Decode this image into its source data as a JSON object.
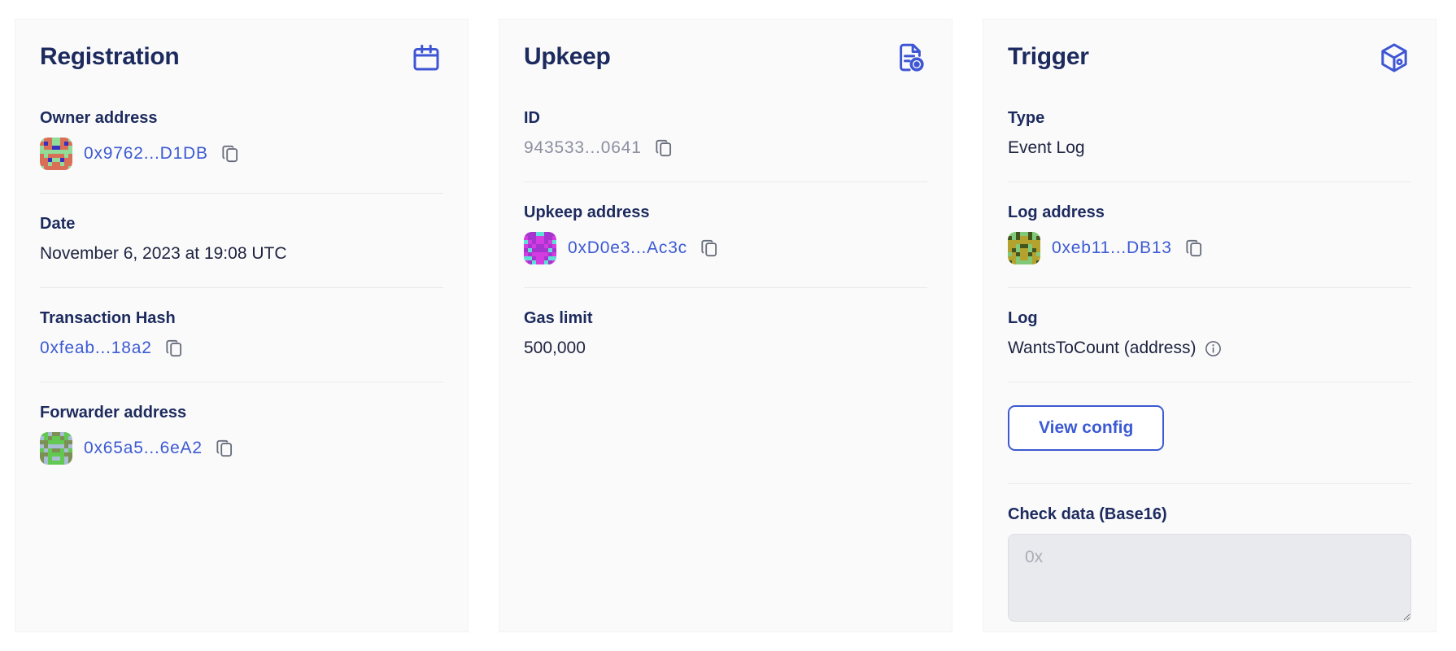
{
  "colors": {
    "accent_blue": "#3c5ad3",
    "heading_navy": "#1c2a5e",
    "body_text": "#1e2340",
    "muted_gray": "#8b8fa0",
    "card_background": "#fafafa",
    "divider": "#e9e9ee",
    "textarea_background": "#e9eaed"
  },
  "registration": {
    "title": "Registration",
    "header_icon": "calendar-icon",
    "owner": {
      "label": "Owner address",
      "value": "0x9762...D1DB",
      "avatar": {
        "bg": "#d96f57",
        "fg": "#90dc98",
        "accent": "#3a2ec0"
      }
    },
    "date": {
      "label": "Date",
      "value": "November 6, 2023 at 19:08 UTC"
    },
    "tx_hash": {
      "label": "Transaction Hash",
      "value": "0xfeab...18a2"
    },
    "forwarder": {
      "label": "Forwarder address",
      "value": "0x65a5...6eA2",
      "avatar": {
        "bg": "#a9bdd6",
        "fg": "#63c852",
        "accent": "#7c8f55"
      }
    }
  },
  "upkeep": {
    "title": "Upkeep",
    "header_icon": "document-gear-icon",
    "id": {
      "label": "ID",
      "value": "943533...0641"
    },
    "address": {
      "label": "Upkeep address",
      "value": "0xD0e3...Ac3c",
      "avatar": {
        "bg": "#d43be0",
        "fg": "#a635cf",
        "accent": "#5fe0d7"
      }
    },
    "gas_limit": {
      "label": "Gas limit",
      "value": "500,000"
    }
  },
  "trigger": {
    "title": "Trigger",
    "header_icon": "cube-icon",
    "type": {
      "label": "Type",
      "value": "Event Log"
    },
    "log_address": {
      "label": "Log address",
      "value": "0xeb11...DB13",
      "avatar": {
        "bg": "#b3a22e",
        "fg": "#81c979",
        "accent": "#44541f"
      }
    },
    "log": {
      "label": "Log",
      "value": "WantsToCount (address)",
      "info_icon": "info-icon"
    },
    "view_config_label": "View config",
    "check_data": {
      "label": "Check data (Base16)",
      "placeholder": "0x"
    }
  }
}
